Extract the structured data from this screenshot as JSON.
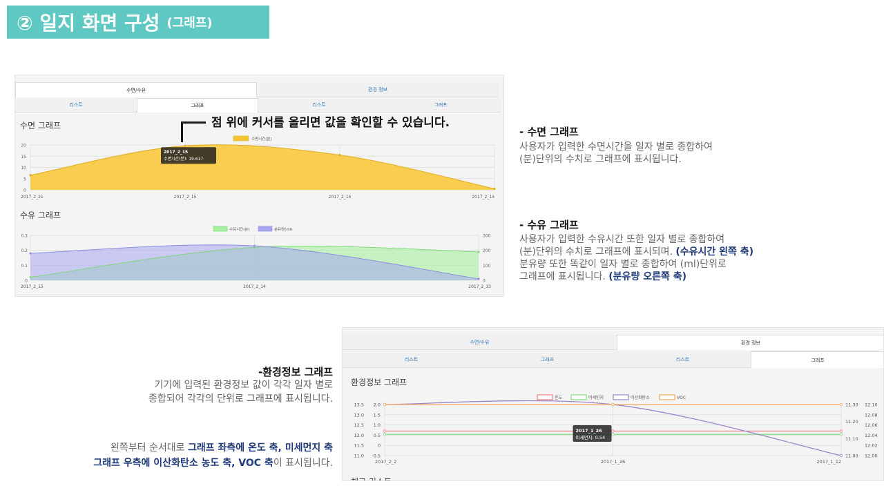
{
  "header": {
    "title": "② 일지 화면 구성",
    "subtitle": "(그래프)"
  },
  "panel1": {
    "tabs_top": [
      "수면/수유",
      "환경 정보"
    ],
    "tabs_sub": [
      "리스트",
      "그래프",
      "리스트",
      "그래프"
    ],
    "sleep_title": "수면 그래프",
    "feed_title": "수유 그래프"
  },
  "callout": "점 위에 커서를 올리면 값을 확인할 수 있습니다.",
  "sleep_desc": {
    "head": "- 수면 그래프",
    "line1": " 사용자가 입력한 수면시간을 일자 별로 종합하여",
    "line2": "(분)단위의 수치로 그래프에 표시됩니다."
  },
  "feed_desc": {
    "head": "- 수유 그래프",
    "line1": " 사용자가 입력한 수유시간 또한 일자 별로 종합하여",
    "line2a": "(분)단위의 수치로 그래프에 표시되며. ",
    "line2b": "(수유시간 왼쪽 축)",
    "line3": "분유량 또한 똑같이 일자 별로 종합하여 (ml)단위로",
    "line4a": "그래프에 표시됩니다. ",
    "line4b": "(분유량 오른쪽 축)"
  },
  "env_desc": {
    "head": "-환경정보 그래프",
    "line1": "기기에 입력된 환경정보 값이 각각 일자 별로",
    "line2": "종합되어 각각의 단위로 그래프에 표시됩니다.",
    "axis1a": "왼쪽부터 순서대로 ",
    "axis1b": "그래프 좌측에 온도 축, 미세먼지 축",
    "axis2a": "그래프 우측에 이산화탄소 농도 축, VOC 축",
    "axis2b": "이 표시됩니다."
  },
  "panel2": {
    "tabs_top": [
      "수면/수유",
      "환경 정보"
    ],
    "tabs_sub": [
      "리스트",
      "그래프",
      "리스트",
      "그래프"
    ],
    "env_title": "환경정보 그래프",
    "bottom_cut": "체크 리스트"
  },
  "colors": {
    "title_bg": "#5fc8c2",
    "sleep": "#f8c532",
    "feed_time": "#a6f0a0",
    "formula": "#a6a6f0",
    "temp": "#f07f7f",
    "dust": "#7fe07f",
    "co2": "#9b87c8",
    "voc": "#f0a860"
  },
  "chart_data": [
    {
      "type": "area",
      "legend": [
        "수면시간(분)"
      ],
      "categories": [
        "2017_2_21",
        "2017_2_15",
        "2017_2_14",
        "2017_2_13"
      ],
      "series": [
        {
          "name": "수면시간(분)",
          "values": [
            6.5,
            19.617,
            15.5,
            0.5
          ]
        }
      ],
      "ylim": [
        0,
        20
      ],
      "yticks": [
        "0",
        "5",
        "10",
        "15",
        "20"
      ],
      "tooltip": {
        "title": "2017_2_15",
        "text": "수면시간(분): 19.617"
      }
    },
    {
      "type": "area",
      "legend": [
        "수유시간(분)",
        "분유량(ml)"
      ],
      "categories": [
        "2017_2_15",
        "2017_2_14",
        "2017_2_13"
      ],
      "series": [
        {
          "name": "수유시간(분)",
          "axis": "left",
          "values": [
            0.02,
            0.22,
            0.19
          ]
        },
        {
          "name": "분유량(ml)",
          "axis": "right",
          "values": [
            180,
            230,
            10
          ]
        }
      ],
      "ylim": [
        0,
        0.3
      ],
      "y2lim": [
        0,
        300
      ],
      "yticks": [
        "0",
        "0.1",
        "0.2",
        "0.3"
      ],
      "y2ticks": [
        "0",
        "100",
        "200",
        "300"
      ]
    },
    {
      "type": "line",
      "legend": [
        "온도",
        "미세먼지",
        "이산화탄소",
        "VOC"
      ],
      "categories": [
        "2017_2_2",
        "2017_1_26",
        "2017_1_12"
      ],
      "series": [
        {
          "name": "온도",
          "values": [
            12.2,
            12.2,
            12.2
          ]
        },
        {
          "name": "미세먼지",
          "values": [
            0.54,
            0.54,
            0.54
          ]
        },
        {
          "name": "이산화탄소",
          "values": [
            11.3,
            11.3,
            11.0
          ]
        },
        {
          "name": "VOC",
          "values": [
            12.1,
            12.1,
            12.1
          ]
        }
      ],
      "axes": {
        "temp": [
          "11.0",
          "11.5",
          "12.0",
          "12.5",
          "13.0",
          "13.5"
        ],
        "dust": [
          "-0.5",
          "0",
          "0.5",
          "1.0",
          "1.5",
          "2.0"
        ],
        "co2": [
          "11.00",
          "11.10",
          "11.20",
          "11.30"
        ],
        "voc": [
          "12.00",
          "12.02",
          "12.04",
          "12.06",
          "12.08",
          "12.10"
        ]
      },
      "tooltip": {
        "title": "2017_1_26",
        "text": "미세먼지: 0.54"
      }
    }
  ]
}
